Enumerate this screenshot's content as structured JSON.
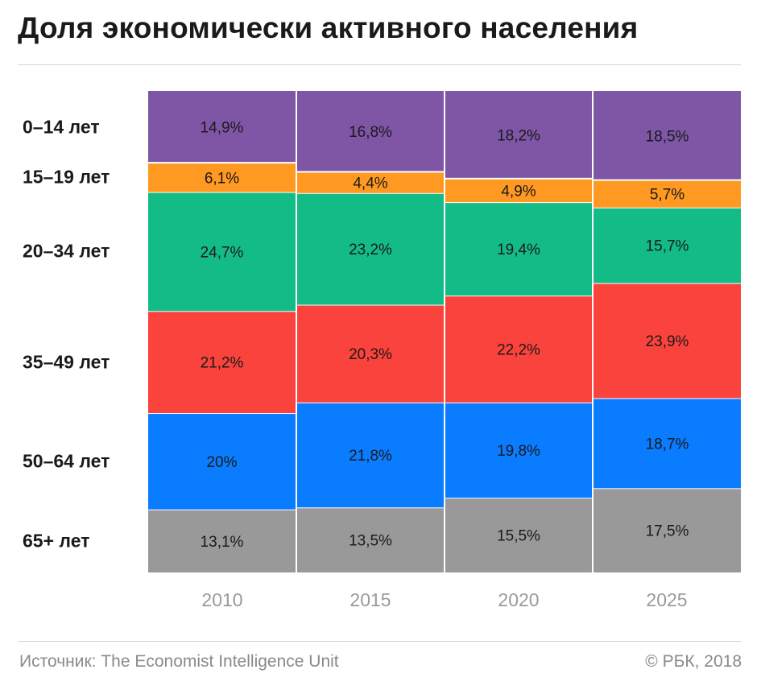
{
  "title": "Доля экономически активного населения",
  "footer": {
    "source": "Источник: The Economist Intelligence Unit",
    "copyright": "© РБК, 2018"
  },
  "colors": {
    "0-14": "#7e56a5",
    "15-19": "#ff9922",
    "20-34": "#13bc86",
    "35-49": "#fa433d",
    "50-64": "#0a7cff",
    "65+": "#999999"
  },
  "chart_data": {
    "type": "bar",
    "stacked": true,
    "variable_width": true,
    "title": "Доля экономически активного населения",
    "categories": [
      "2010",
      "2015",
      "2020",
      "2025"
    ],
    "series": [
      {
        "name": "0–14 лет",
        "key": "0-14",
        "values": [
          14.9,
          16.8,
          18.2,
          18.5
        ],
        "labels": [
          "14,9%",
          "16,8%",
          "18,2%",
          "18,5%"
        ]
      },
      {
        "name": "15–19 лет",
        "key": "15-19",
        "values": [
          6.1,
          4.4,
          4.9,
          5.7
        ],
        "labels": [
          "6,1%",
          "4,4%",
          "4,9%",
          "5,7%"
        ]
      },
      {
        "name": "20–34 лет",
        "key": "20-34",
        "values": [
          24.7,
          23.2,
          19.4,
          15.7
        ],
        "labels": [
          "24,7%",
          "23,2%",
          "19,4%",
          "15,7%"
        ]
      },
      {
        "name": "35–49 лет",
        "key": "35-49",
        "values": [
          21.2,
          20.3,
          22.2,
          23.9
        ],
        "labels": [
          "21,2%",
          "20,3%",
          "22,2%",
          "23,9%"
        ]
      },
      {
        "name": "50–64 лет",
        "key": "50-64",
        "values": [
          20,
          21.8,
          19.8,
          18.7
        ],
        "labels": [
          "20%",
          "21,8%",
          "19,8%",
          "18,7%"
        ]
      },
      {
        "name": "65+  лет",
        "key": "65+",
        "values": [
          13.1,
          13.5,
          15.5,
          17.5
        ],
        "labels": [
          "13,1%",
          "13,5%",
          "15,5%",
          "17,5%"
        ]
      }
    ],
    "ylim": [
      0,
      100
    ],
    "legend": "left",
    "grid": false
  }
}
